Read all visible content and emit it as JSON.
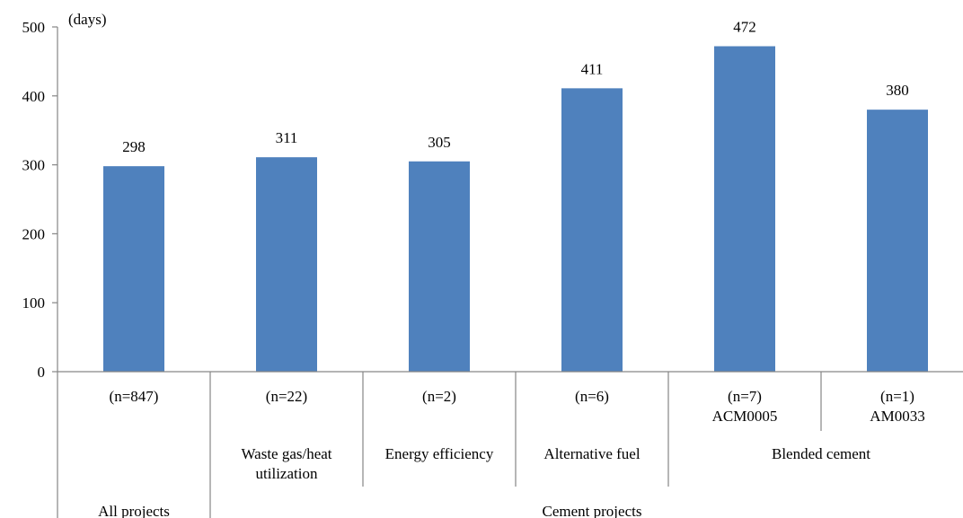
{
  "chart_data": {
    "type": "bar",
    "ylabel": "(days)",
    "ylim": [
      0,
      500
    ],
    "yticks": [
      0,
      100,
      200,
      300,
      400,
      500
    ],
    "grid": false,
    "legend": "none",
    "bar_color": "#4F81BD",
    "categories": [
      {
        "n_label": "(n=847)",
        "sub_label": "",
        "value": 298
      },
      {
        "n_label": "(n=22)",
        "sub_label": "",
        "value": 311
      },
      {
        "n_label": "(n=2)",
        "sub_label": "",
        "value": 305
      },
      {
        "n_label": "(n=6)",
        "sub_label": "",
        "value": 411
      },
      {
        "n_label": "(n=7)",
        "sub_label": "ACM0005",
        "value": 472
      },
      {
        "n_label": "(n=1)",
        "sub_label": "AM0033",
        "value": 380
      }
    ],
    "group_labels_level2": [
      {
        "label": "Waste gas/heat",
        "label2": "utilization",
        "span": [
          1,
          1
        ]
      },
      {
        "label": "Energy efficiency",
        "label2": "",
        "span": [
          2,
          2
        ]
      },
      {
        "label": "Alternative fuel",
        "label2": "",
        "span": [
          3,
          3
        ]
      },
      {
        "label": "Blended cement",
        "label2": "",
        "span": [
          4,
          5
        ]
      }
    ],
    "group_labels_level3": [
      {
        "label": "All projects",
        "span": [
          0,
          0
        ]
      },
      {
        "label": "Cement projects",
        "span": [
          1,
          5
        ]
      }
    ]
  }
}
